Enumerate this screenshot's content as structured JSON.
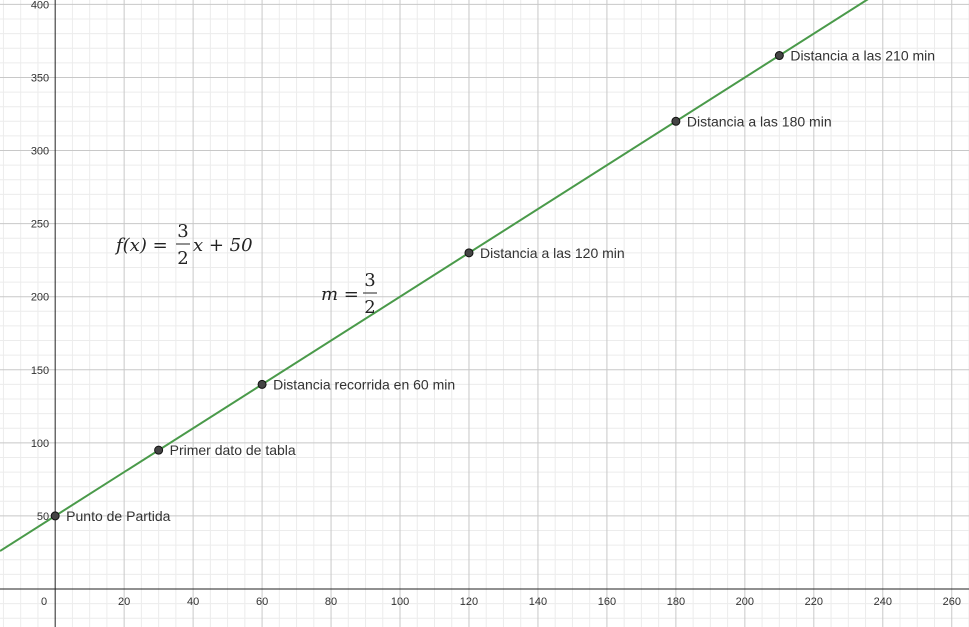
{
  "chart_data": {
    "type": "line",
    "grid": true,
    "xlim": [
      -16,
      265
    ],
    "ylim": [
      -26,
      403
    ],
    "x_ticks": [
      0,
      20,
      40,
      60,
      80,
      100,
      120,
      140,
      160,
      180,
      200,
      220,
      240,
      260
    ],
    "y_ticks": [
      50,
      100,
      150,
      200,
      250,
      300,
      350,
      400
    ],
    "x_tick_labels": [
      "0",
      "20",
      "40",
      "60",
      "80",
      "100",
      "120",
      "140",
      "160",
      "180",
      "200",
      "220",
      "240",
      "260"
    ],
    "y_tick_labels": [
      "50",
      "100",
      "150",
      "200",
      "250",
      "300",
      "350",
      "400"
    ],
    "line": {
      "slope": 1.5,
      "intercept": 50,
      "color": "#4a9a4a"
    },
    "points": [
      {
        "label": "Punto de Partida",
        "x": 0,
        "y": 50
      },
      {
        "label": "Primer dato de tabla",
        "x": 30,
        "y": 95
      },
      {
        "label": "Distancia recorrida en 60 min",
        "x": 60,
        "y": 140
      },
      {
        "label": "Distancia a las 120 min",
        "x": 120,
        "y": 230
      },
      {
        "label": "Distancia a las 180 min",
        "x": 180,
        "y": 320
      },
      {
        "label": "Distancia a las 210 min",
        "x": 210,
        "y": 365
      }
    ],
    "annotations": {
      "function": {
        "lhs": "f(x) =",
        "num": "3",
        "den": "2",
        "rhs": "x + 50"
      },
      "slope": {
        "lhs": "m =",
        "num": "3",
        "den": "2"
      }
    }
  }
}
